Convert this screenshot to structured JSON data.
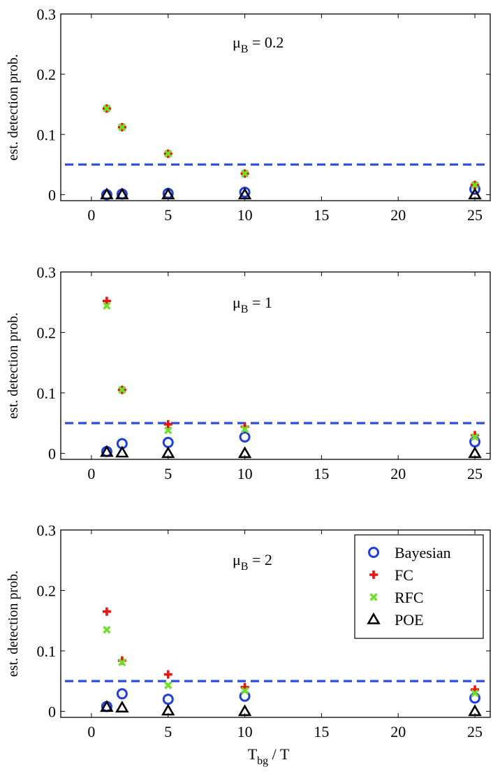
{
  "chart_data": [
    {
      "type": "scatter",
      "annotation": {
        "prefix": "μ",
        "sub": "B",
        "suffix": " = 0.2"
      },
      "ylabel": "est. detection prob.",
      "xlabel": "",
      "xlim": [
        -2,
        26
      ],
      "ylim": [
        -0.01,
        0.3
      ],
      "xticks": [
        0,
        5,
        10,
        15,
        20,
        25
      ],
      "yticks": [
        0,
        0.1,
        0.2,
        0.3
      ],
      "ytick_labels": [
        "0",
        "0.1",
        "0.2",
        "0.3"
      ],
      "reference_line": {
        "y": 0.05,
        "color": "#2b4ee0"
      },
      "x": [
        1,
        2,
        5,
        10,
        25
      ],
      "series": [
        {
          "name": "Bayesian",
          "marker": "circle",
          "color": "#1f3fe0",
          "values": [
            0.0,
            0.001,
            0.002,
            0.004,
            0.009
          ]
        },
        {
          "name": "FC",
          "marker": "plus",
          "color": "#f01010",
          "values": [
            0.143,
            0.112,
            0.068,
            0.035,
            0.016
          ]
        },
        {
          "name": "RFC",
          "marker": "x",
          "color": "#6ee02a",
          "values": [
            0.143,
            0.112,
            0.068,
            0.035,
            0.016
          ]
        },
        {
          "name": "POE",
          "marker": "triangle",
          "color": "#000000",
          "values": [
            0.0,
            0.0,
            0.0,
            0.0,
            0.0
          ]
        }
      ]
    },
    {
      "type": "scatter",
      "annotation": {
        "prefix": "μ",
        "sub": "B",
        "suffix": " = 1"
      },
      "ylabel": "est. detection prob.",
      "xlabel": "",
      "xlim": [
        -2,
        26
      ],
      "ylim": [
        -0.01,
        0.3
      ],
      "xticks": [
        0,
        5,
        10,
        15,
        20,
        25
      ],
      "yticks": [
        0,
        0.1,
        0.2,
        0.3
      ],
      "ytick_labels": [
        "0",
        "0.1",
        "0.2",
        "0.3"
      ],
      "reference_line": {
        "y": 0.05,
        "color": "#2b4ee0"
      },
      "x": [
        1,
        2,
        5,
        10,
        25
      ],
      "series": [
        {
          "name": "Bayesian",
          "marker": "circle",
          "color": "#1f3fe0",
          "values": [
            0.003,
            0.016,
            0.018,
            0.027,
            0.019
          ]
        },
        {
          "name": "FC",
          "marker": "plus",
          "color": "#f01010",
          "values": [
            0.252,
            0.105,
            0.048,
            0.044,
            0.03
          ]
        },
        {
          "name": "RFC",
          "marker": "x",
          "color": "#6ee02a",
          "values": [
            0.244,
            0.105,
            0.038,
            0.04,
            0.027
          ]
        },
        {
          "name": "POE",
          "marker": "triangle",
          "color": "#000000",
          "values": [
            0.002,
            0.001,
            0.0,
            0.0,
            0.0
          ]
        }
      ]
    },
    {
      "type": "scatter",
      "annotation": {
        "prefix": "μ",
        "sub": "B",
        "suffix": " = 2"
      },
      "ylabel": "est. detection prob.",
      "xlabel": "T_bg / T",
      "xlabel_main": "T",
      "xlabel_sub": "bg",
      "xlabel_rest": " / T",
      "xlim": [
        -2,
        26
      ],
      "ylim": [
        -0.01,
        0.3
      ],
      "xticks": [
        0,
        5,
        10,
        15,
        20,
        25
      ],
      "yticks": [
        0,
        0.1,
        0.2,
        0.3
      ],
      "ytick_labels": [
        "0",
        "0.1",
        "0.2",
        "0.3"
      ],
      "reference_line": {
        "y": 0.05,
        "color": "#2b4ee0"
      },
      "legend": {
        "entries": [
          "Bayesian",
          "FC",
          "RFC",
          "POE"
        ],
        "location": "top-right"
      },
      "x": [
        1,
        2,
        5,
        10,
        25
      ],
      "series": [
        {
          "name": "Bayesian",
          "marker": "circle",
          "color": "#1f3fe0",
          "values": [
            0.008,
            0.029,
            0.02,
            0.025,
            0.022
          ]
        },
        {
          "name": "FC",
          "marker": "plus",
          "color": "#f01010",
          "values": [
            0.165,
            0.084,
            0.061,
            0.04,
            0.036
          ]
        },
        {
          "name": "RFC",
          "marker": "x",
          "color": "#6ee02a",
          "values": [
            0.135,
            0.081,
            0.043,
            0.034,
            0.03
          ]
        },
        {
          "name": "POE",
          "marker": "triangle",
          "color": "#000000",
          "values": [
            0.007,
            0.006,
            0.001,
            0.0,
            0.0
          ]
        }
      ]
    }
  ]
}
